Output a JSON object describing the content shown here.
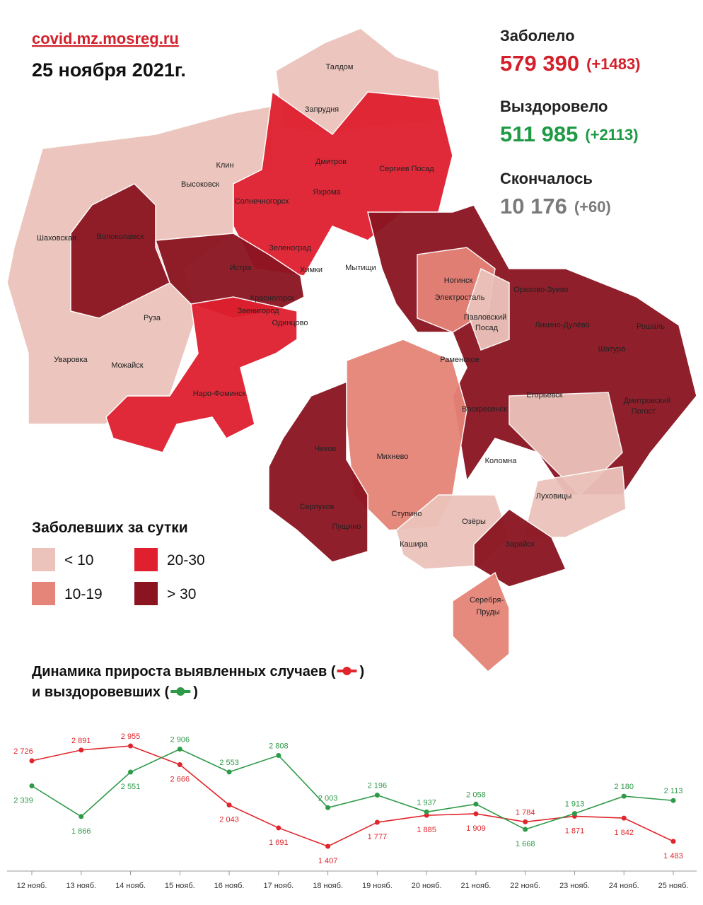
{
  "header": {
    "site": "covid.mz.mosreg.ru",
    "date": "25 ноября 2021г."
  },
  "stats": [
    {
      "label": "Заболело",
      "value": "579 390",
      "change": "(+1483)"
    },
    {
      "label": "Выздоровело",
      "value": "511 985",
      "change": "(+2113)"
    },
    {
      "label": "Скончалось",
      "value": "10 176",
      "change": "(+60)"
    }
  ],
  "legend": {
    "title": "Заболевших за сутки",
    "items": [
      {
        "label": "< 10",
        "color": "#ebc3bb"
      },
      {
        "label": "10-19",
        "color": "#e58478"
      },
      {
        "label": "20-30",
        "color": "#e01f2f"
      },
      {
        "label": "> 30",
        "color": "#8a1420"
      }
    ]
  },
  "map": {
    "cities": [
      "Талдом",
      "Запрудня",
      "Клин",
      "Дмитров",
      "Сергиев Посад",
      "Высоковск",
      "Яхрома",
      "Солнечногорск",
      "Волоколамск",
      "Шаховская",
      "Зеленоград",
      "Истра",
      "Химки",
      "Мытищи",
      "Ногинск",
      "Электросталь",
      "Орехово-Зуево",
      "Красногорск",
      "Звенигород",
      "Одинцово",
      "Павловский",
      "Посад",
      "Ликино-Дулёво",
      "Рошаль",
      "Руза",
      "Шатура",
      "Раменское",
      "Уваровка",
      "Можайск",
      "Наро-Фоминск",
      "Егорьевск",
      "Дмитровский",
      "Погост",
      "Воскресенск",
      "Чехов",
      "Михнево",
      "Коломна",
      "Луховицы",
      "Серпухов",
      "Пущино",
      "Ступино",
      "Озёры",
      "Кашира",
      "Зарайск",
      "Серебря-",
      "Пруды"
    ]
  },
  "chart_data": {
    "type": "line",
    "title": [
      "Динамика прироста выявленных случаев (",
      ")",
      "и выздоровевших (",
      ")"
    ],
    "categories": [
      "12 нояб.",
      "13 нояб.",
      "14 нояб.",
      "15 нояб.",
      "16 нояб.",
      "17 нояб.",
      "18 нояб.",
      "19 нояб.",
      "20 нояб.",
      "21 нояб.",
      "22 нояб.",
      "23 нояб.",
      "24 нояб.",
      "25 нояб."
    ],
    "series": [
      {
        "color": "#e0262c",
        "values": [
          2726,
          2891,
          2955,
          2666,
          2043,
          1691,
          1407,
          1777,
          1885,
          1909,
          1784,
          1871,
          1842,
          1483
        ],
        "value_labels": [
          "2 726",
          "2 891",
          "2 955",
          "2 666",
          "2 043",
          "1 691",
          "1 407",
          "1 777",
          "1 885",
          "1 909",
          "1 784",
          "1 871",
          "1 842",
          "1 483"
        ]
      },
      {
        "color": "#2e9a48",
        "values": [
          2339,
          1866,
          2551,
          2906,
          2553,
          2808,
          2003,
          2196,
          1937,
          2058,
          1668,
          1913,
          2180,
          2113
        ],
        "value_labels": [
          "2 339",
          "1 866",
          "2 551",
          "2 906",
          "2 553",
          "2 808",
          "2 003",
          "2 196",
          "1 937",
          "2 058",
          "1 668",
          "1 913",
          "2 180",
          "2 113"
        ]
      }
    ]
  }
}
